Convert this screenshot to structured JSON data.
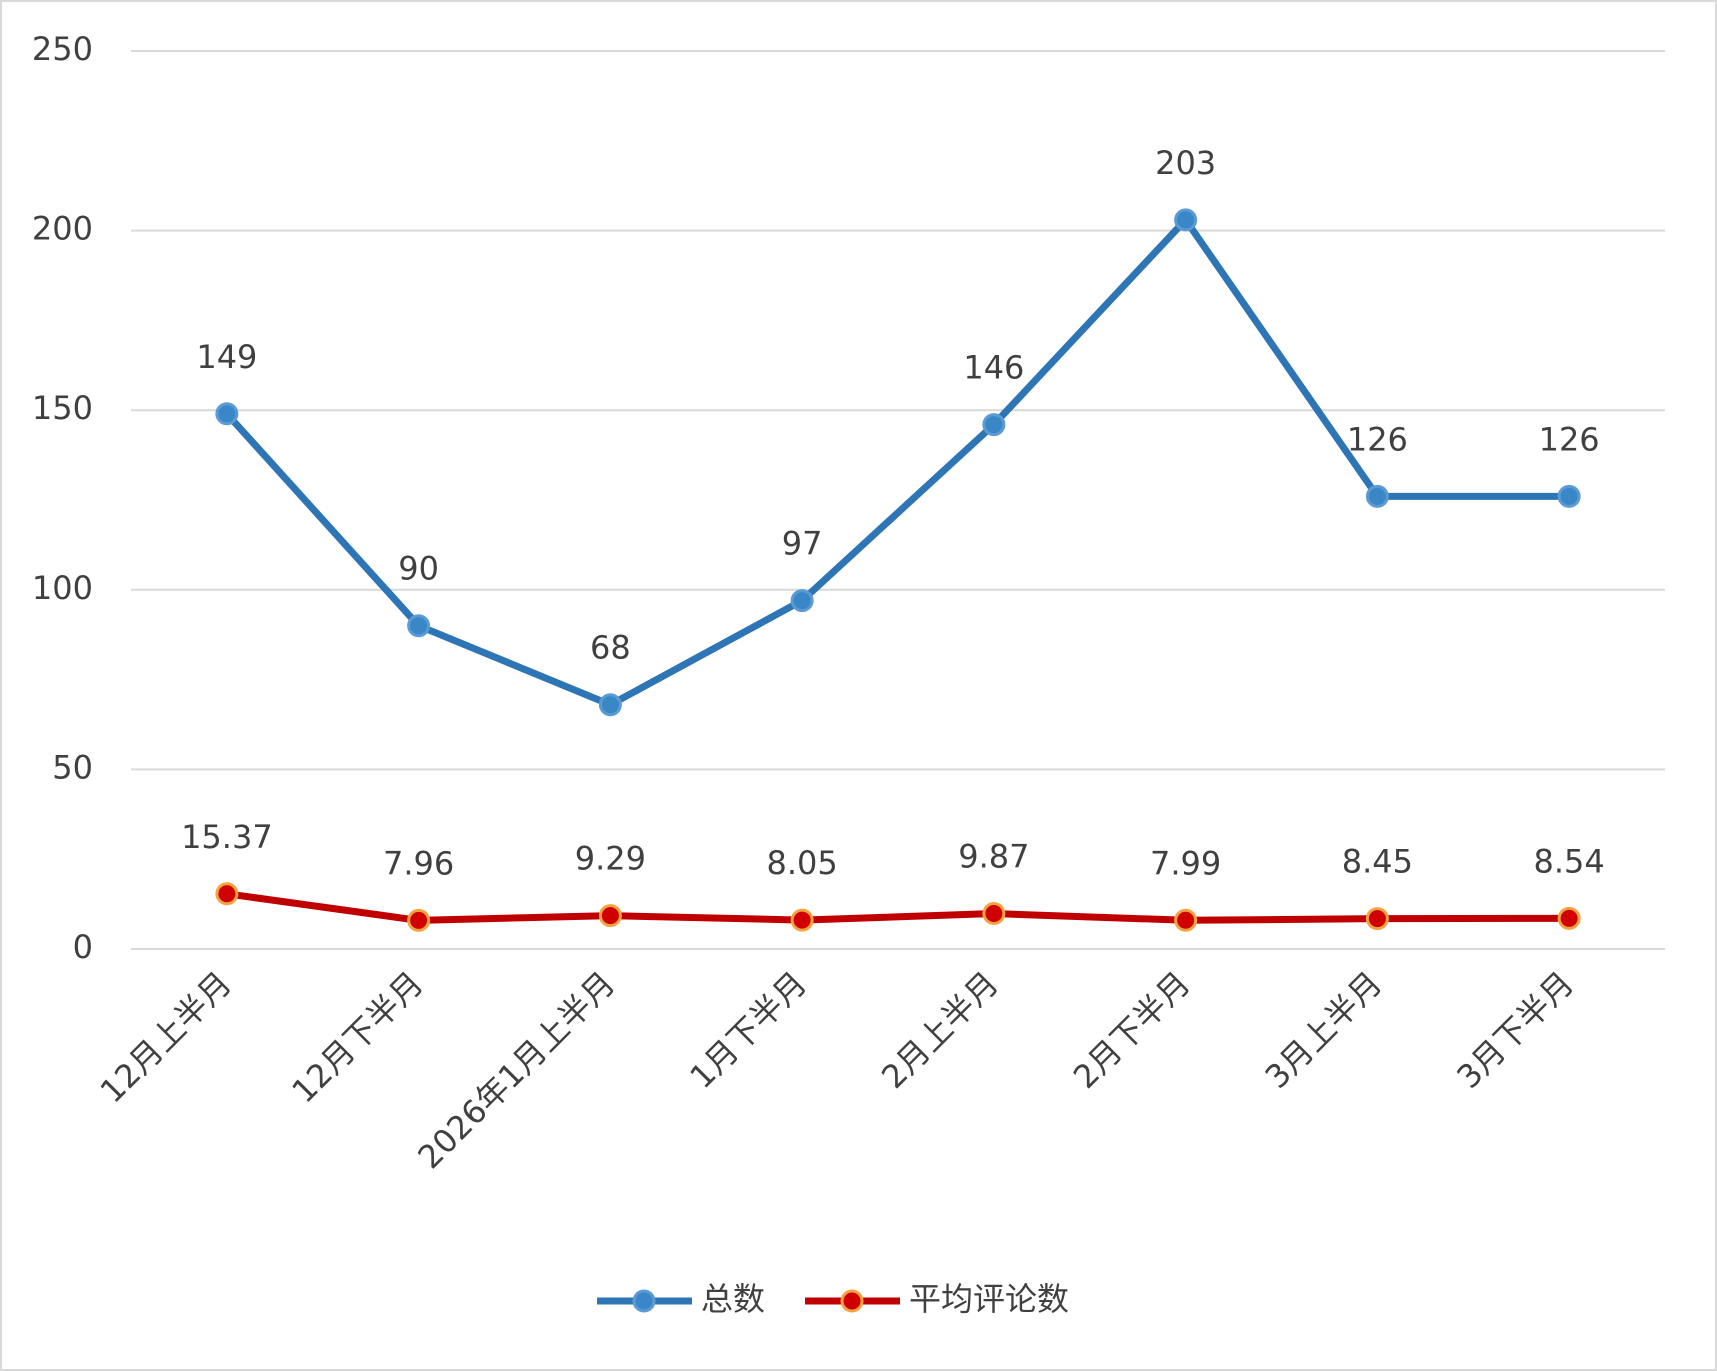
{
  "chart_data": {
    "type": "line",
    "categories": [
      "12月上半月",
      "12月下半月",
      "2026年1月上半月",
      "1月下半月",
      "2月上半月",
      "2月下半月",
      "3月上半月",
      "3月下半月"
    ],
    "series": [
      {
        "name": "总数",
        "color": "#2e75b6",
        "values": [
          149,
          90,
          68,
          97,
          146,
          203,
          126,
          126
        ]
      },
      {
        "name": "平均评论数",
        "color": "#c00000",
        "values": [
          15.37,
          7.96,
          9.29,
          8.05,
          9.87,
          7.99,
          8.45,
          8.54
        ]
      }
    ],
    "ylim": [
      0,
      250
    ],
    "yticks": [
      0,
      50,
      100,
      150,
      200,
      250
    ],
    "grid": true,
    "legend": "bottom"
  }
}
